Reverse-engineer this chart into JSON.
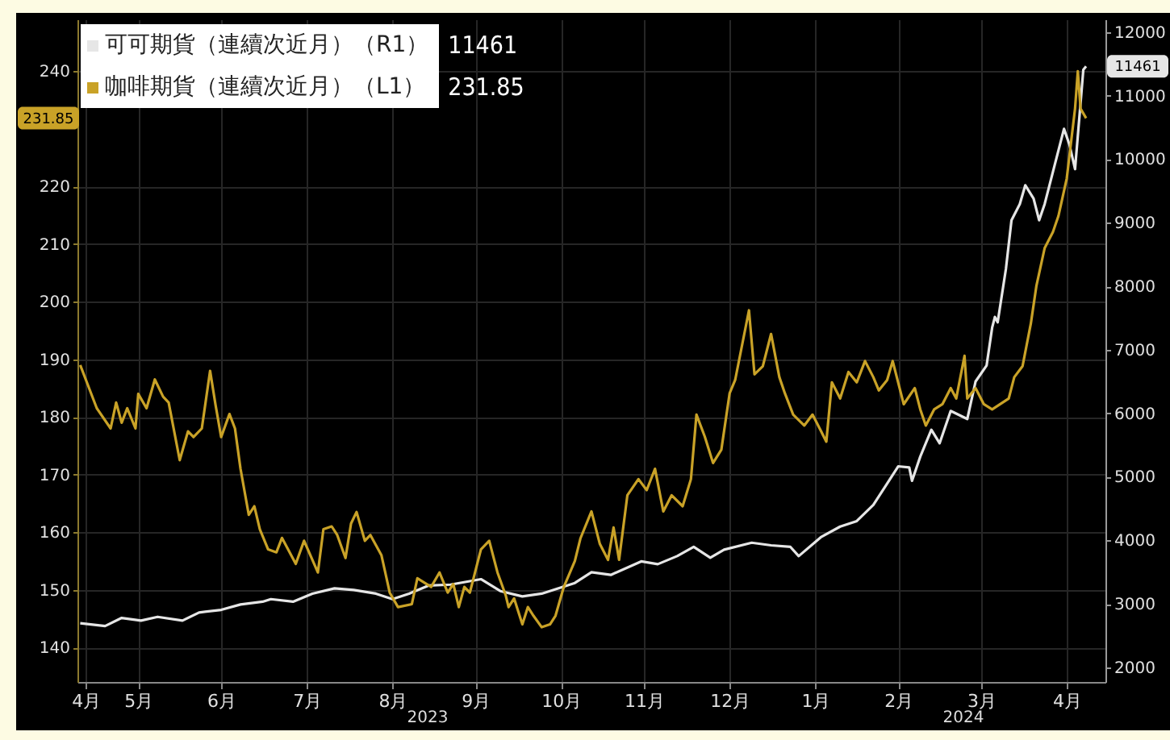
{
  "chart_data": {
    "type": "line",
    "legend": "top left",
    "grid": true,
    "marker": "none",
    "line_style": "solid",
    "xlim": [
      "2023-04-24",
      "2024-04-30"
    ],
    "xticks": [
      {
        "value": "2023-04-27",
        "label": "4月"
      },
      {
        "value": "2023-05-16",
        "label": "5月"
      },
      {
        "value": "2023-06-15",
        "label": "6月"
      },
      {
        "value": "2023-07-16",
        "label": "7月"
      },
      {
        "value": "2023-08-16",
        "label": "8月"
      },
      {
        "value": "2023-09-15",
        "label": "9月"
      },
      {
        "value": "2023-10-16",
        "label": "10月"
      },
      {
        "value": "2023-11-15",
        "label": "11月"
      },
      {
        "value": "2023-12-16",
        "label": "12月"
      },
      {
        "value": "2024-01-16",
        "label": "1月"
      },
      {
        "value": "2024-02-15",
        "label": "2月"
      },
      {
        "value": "2024-03-16",
        "label": "3月"
      },
      {
        "value": "2024-04-16",
        "label": "4月"
      }
    ],
    "ylim": [
      134,
      249
    ],
    "yticks": [
      140,
      150,
      160,
      170,
      180,
      190,
      200,
      210,
      220,
      240
    ],
    "y2lim": [
      1770,
      12200
    ],
    "y2ticks": [
      2000,
      3000,
      4000,
      5000,
      6000,
      7000,
      8000,
      9000,
      10000,
      11000,
      12000
    ],
    "annotations": [
      "2023",
      "2024",
      "11461",
      "231.85",
      {
        "text": "231.85",
        "y": 231.85
      }
    ],
    "series": [
      {
        "name": "可可期貨（連續次近月）（R1）",
        "color": "#e6e6e6",
        "axis": "y2",
        "x": [
          "2023-04-25",
          "2023-05-04",
          "2023-05-10",
          "2023-05-17",
          "2023-05-23",
          "2023-06-01",
          "2023-06-07",
          "2023-06-15",
          "2023-06-22",
          "2023-06-30",
          "2023-07-03",
          "2023-07-11",
          "2023-07-18",
          "2023-07-26",
          "2023-08-02",
          "2023-08-10",
          "2023-08-16",
          "2023-08-22",
          "2023-08-29",
          "2023-09-06",
          "2023-09-17",
          "2023-09-24",
          "2023-10-02",
          "2023-10-09",
          "2023-10-21",
          "2023-10-27",
          "2023-11-03",
          "2023-11-14",
          "2023-11-20",
          "2023-11-27",
          "2023-12-03",
          "2023-12-09",
          "2023-12-14",
          "2023-12-24",
          "2023-12-31",
          "2024-01-07",
          "2024-01-10",
          "2024-01-18",
          "2024-01-25",
          "2024-01-31",
          "2024-02-06",
          "2024-02-11",
          "2024-02-15",
          "2024-02-19",
          "2024-02-20",
          "2024-02-23",
          "2024-02-27",
          "2024-03-01",
          "2024-03-05",
          "2024-03-11",
          "2024-03-14",
          "2024-03-18",
          "2024-03-20",
          "2024-03-21",
          "2024-03-22",
          "2024-03-25",
          "2024-03-27",
          "2024-03-30",
          "2024-04-01",
          "2024-04-04",
          "2024-04-06",
          "2024-04-08",
          "2024-04-11",
          "2024-04-15",
          "2024-04-17",
          "2024-04-19",
          "2024-04-22",
          "2024-04-23"
        ],
        "values": [
          2694,
          2651,
          2778,
          2736,
          2795,
          2736,
          2863,
          2905,
          2990,
          3033,
          3074,
          3033,
          3160,
          3244,
          3218,
          3160,
          3074,
          3160,
          3287,
          3302,
          3388,
          3201,
          3117,
          3160,
          3328,
          3497,
          3455,
          3668,
          3624,
          3751,
          3896,
          3726,
          3853,
          3962,
          3921,
          3896,
          3751,
          4048,
          4216,
          4302,
          4556,
          4893,
          5164,
          5147,
          4936,
          5318,
          5739,
          5528,
          6036,
          5909,
          6500,
          6753,
          7347,
          7515,
          7431,
          8277,
          9038,
          9292,
          9589,
          9378,
          9038,
          9292,
          9800,
          10477,
          10223,
          9843,
          11408,
          11461
        ],
        "value_labels": [
          null,
          null,
          null,
          null,
          null,
          null,
          null,
          null,
          null,
          null,
          null,
          null,
          null,
          null,
          null,
          null,
          null,
          null,
          null,
          null,
          null,
          null,
          null,
          null,
          null,
          null,
          null,
          null,
          null,
          null,
          null,
          null,
          null,
          null,
          null,
          null,
          null,
          null,
          null,
          null,
          null,
          null,
          null,
          null,
          null,
          null,
          null,
          null,
          null,
          null,
          null,
          null,
          null,
          null,
          null,
          null,
          null,
          null,
          null,
          null,
          null,
          null,
          null,
          null,
          null,
          null,
          null,
          "11461"
        ]
      },
      {
        "name": "咖啡期貨（連續次近月）（L1）",
        "color": "#c9a227",
        "x": [
          "2023-04-25",
          "2023-04-27",
          "2023-05-01",
          "2023-05-06",
          "2023-05-08",
          "2023-05-10",
          "2023-05-12",
          "2023-05-15",
          "2023-05-16",
          "2023-05-19",
          "2023-05-22",
          "2023-05-25",
          "2023-05-27",
          "2023-05-31",
          "2023-06-03",
          "2023-06-05",
          "2023-06-08",
          "2023-06-11",
          "2023-06-13",
          "2023-06-15",
          "2023-06-18",
          "2023-06-20",
          "2023-06-22",
          "2023-06-25",
          "2023-06-27",
          "2023-06-29",
          "2023-07-02",
          "2023-07-05",
          "2023-07-07",
          "2023-07-12",
          "2023-07-15",
          "2023-07-20",
          "2023-07-22",
          "2023-07-25",
          "2023-07-27",
          "2023-07-30",
          "2023-08-01",
          "2023-08-03",
          "2023-08-06",
          "2023-08-08",
          "2023-08-12",
          "2023-08-15",
          "2023-08-18",
          "2023-08-23",
          "2023-08-25",
          "2023-08-30",
          "2023-09-02",
          "2023-09-05",
          "2023-09-07",
          "2023-09-09",
          "2023-09-11",
          "2023-09-13",
          "2023-09-17",
          "2023-09-20",
          "2023-09-23",
          "2023-09-26",
          "2023-09-27",
          "2023-09-29",
          "2023-10-02",
          "2023-10-04",
          "2023-10-06",
          "2023-10-09",
          "2023-10-12",
          "2023-10-14",
          "2023-10-17",
          "2023-10-21",
          "2023-10-23",
          "2023-10-27",
          "2023-10-30",
          "2023-11-02",
          "2023-11-04",
          "2023-11-06",
          "2023-11-09",
          "2023-11-13",
          "2023-11-16",
          "2023-11-19",
          "2023-11-22",
          "2023-11-25",
          "2023-11-29",
          "2023-12-02",
          "2023-12-04",
          "2023-12-07",
          "2023-12-10",
          "2023-12-13",
          "2023-12-16",
          "2023-12-18",
          "2023-12-23",
          "2023-12-25",
          "2023-12-28",
          "2023-12-31",
          "2024-01-03",
          "2024-01-05",
          "2024-01-08",
          "2024-01-12",
          "2024-01-15",
          "2024-01-18",
          "2024-01-20",
          "2024-01-22",
          "2024-01-25",
          "2024-01-28",
          "2024-01-31",
          "2024-02-03",
          "2024-02-06",
          "2024-02-08",
          "2024-02-11",
          "2024-02-13",
          "2024-02-17",
          "2024-02-21",
          "2024-02-23",
          "2024-02-25",
          "2024-02-28",
          "2024-03-02",
          "2024-03-05",
          "2024-03-07",
          "2024-03-10",
          "2024-03-11",
          "2024-03-14",
          "2024-03-17",
          "2024-03-20",
          "2024-03-26",
          "2024-03-28",
          "2024-03-31",
          "2024-04-03",
          "2024-04-05",
          "2024-04-08",
          "2024-04-11",
          "2024-04-13",
          "2024-04-16",
          "2024-04-19",
          "2024-04-20",
          "2024-04-21",
          "2024-04-23"
        ],
        "values": [
          189,
          186.5,
          181.5,
          178,
          182.5,
          179,
          181.5,
          178,
          184,
          181.5,
          186.5,
          183.5,
          182.5,
          172.5,
          177.5,
          176.5,
          178,
          188,
          182,
          176.5,
          180.5,
          178,
          171,
          163,
          164.5,
          160.5,
          157,
          156.5,
          159,
          154.5,
          158.5,
          153,
          160.5,
          161,
          159.5,
          155.5,
          161.5,
          163.5,
          158.5,
          159.5,
          156,
          149.5,
          147,
          147.5,
          152,
          150.5,
          153,
          149.5,
          151,
          147,
          150.5,
          149.5,
          157,
          158.5,
          153,
          149,
          147,
          148.5,
          144,
          147,
          145.5,
          143.5,
          144,
          145.5,
          150.5,
          155,
          158.9,
          163.6,
          158,
          155.2,
          160.8,
          155.2,
          166.4,
          169.2,
          167.3,
          171,
          163.6,
          166.4,
          164.5,
          169.2,
          180.4,
          176.6,
          172,
          174.3,
          184.1,
          186.4,
          198.5,
          187.4,
          188.8,
          194.4,
          186.9,
          184.1,
          180.4,
          178.5,
          180.4,
          177.6,
          175.7,
          186,
          183.2,
          187.8,
          186,
          189.7,
          186.9,
          184.6,
          186.4,
          189.7,
          182.2,
          185,
          181.3,
          178.5,
          181.3,
          182.2,
          185,
          183.2,
          190.6,
          183.2,
          185,
          182.2,
          181.3,
          183.2,
          186.9,
          188.8,
          196.2,
          202.7,
          209.3,
          212.1,
          214.9,
          221.4,
          233.5,
          240,
          233.5,
          231.85
        ],
        "value_labels": [
          null,
          null,
          null,
          null,
          null,
          null,
          null,
          null,
          null,
          null,
          null,
          null,
          null,
          null,
          null,
          null,
          null,
          null,
          null,
          null,
          null,
          null,
          null,
          null,
          null,
          null,
          null,
          null,
          null,
          null,
          null,
          null,
          null,
          null,
          null,
          null,
          null,
          null,
          null,
          null,
          null,
          null,
          null,
          null,
          null,
          null,
          null,
          null,
          null,
          null,
          null,
          null,
          null,
          null,
          null,
          null,
          null,
          null,
          null,
          null,
          null,
          null,
          null,
          null,
          null,
          null,
          null,
          null,
          null,
          null,
          null,
          null,
          null,
          null,
          null,
          null,
          null,
          null,
          null,
          null,
          null,
          null,
          null,
          null,
          null,
          null,
          null,
          null,
          null,
          null,
          null,
          null,
          null,
          null,
          null,
          null,
          null,
          null,
          null,
          null,
          null,
          null,
          null,
          null,
          null,
          null,
          null,
          null,
          null,
          null,
          null,
          null,
          null,
          null,
          null,
          null,
          null,
          null,
          null,
          null,
          null,
          null,
          null,
          null,
          null,
          null,
          null,
          null,
          null,
          null,
          null,
          null
        ]
      }
    ]
  }
}
